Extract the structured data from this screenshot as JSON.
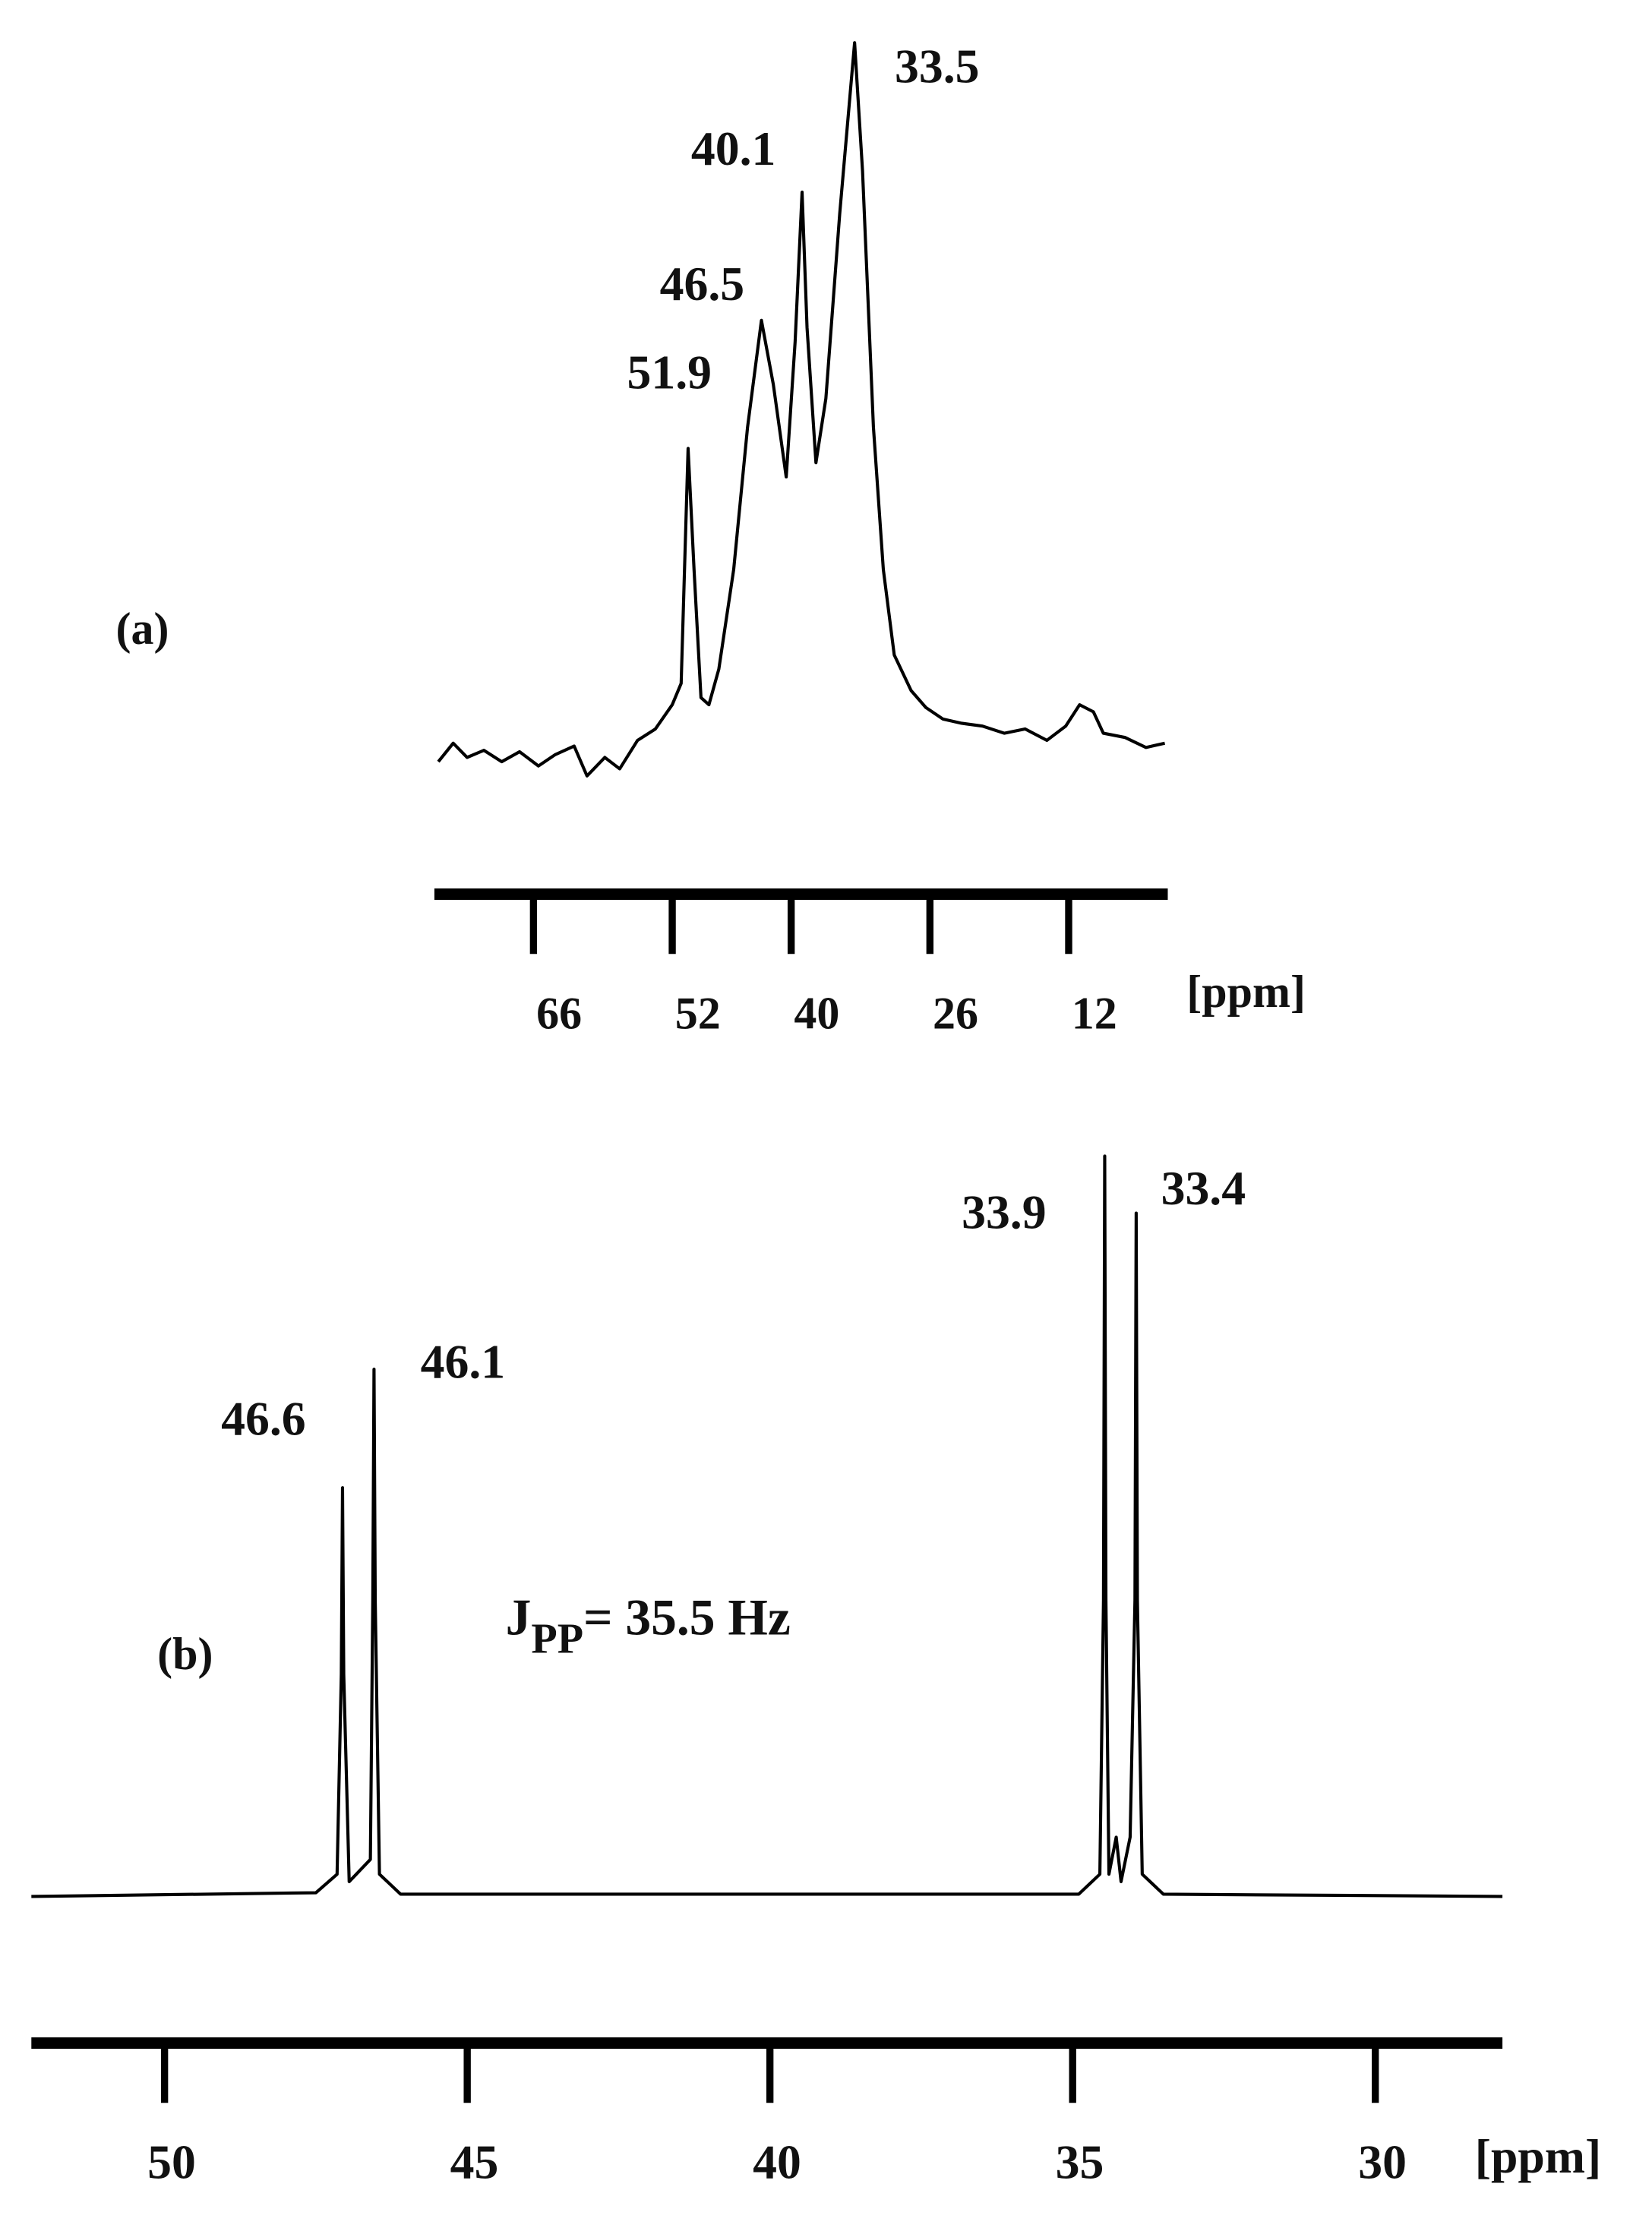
{
  "chart_data": [
    {
      "type": "line",
      "panel_label": "(a)",
      "x_label": "[ppm]",
      "color": "#000000",
      "xlim": [
        76,
        2
      ],
      "xticks": [
        66,
        52,
        40,
        26,
        12
      ],
      "ylim": [
        0,
        100
      ],
      "annotations": [
        "51.9",
        "46.5",
        "40.1",
        "33.5"
      ],
      "x": [
        75.6,
        74.1,
        72.7,
        71.0,
        69.2,
        67.4,
        65.5,
        63.8,
        61.9,
        60.6,
        58.8,
        57.3,
        55.5,
        53.7,
        52.0,
        51.1,
        50.4,
        49.8,
        49.1,
        48.3,
        47.3,
        45.8,
        44.4,
        43.0,
        41.8,
        40.5,
        39.6,
        38.9,
        38.4,
        37.5,
        36.5,
        35.1,
        33.6,
        32.8,
        31.7,
        30.7,
        29.6,
        27.9,
        26.4,
        24.7,
        22.8,
        20.7,
        18.5,
        16.4,
        14.2,
        12.3,
        10.9,
        9.5,
        8.5,
        6.3,
        4.2,
        2.3
      ],
      "values": [
        1,
        3.6,
        1.6,
        2.6,
        1,
        2.4,
        0.4,
        2,
        3.2,
        -1,
        1.6,
        0,
        4,
        5.6,
        9,
        12,
        45,
        28,
        10,
        9,
        14,
        28,
        48,
        63,
        54,
        41,
        60,
        81,
        62,
        43,
        52,
        78,
        102,
        84,
        48,
        28,
        16,
        11,
        8.6,
        7,
        6.4,
        6,
        5,
        5.6,
        4,
        6,
        9,
        8,
        5,
        4.4,
        3,
        3.6
      ]
    },
    {
      "type": "line",
      "panel_label": "(b)",
      "x_label": "[ppm]",
      "color": "#000000",
      "xlim": [
        52.2,
        27.9
      ],
      "xticks": [
        50,
        45,
        40,
        35,
        30
      ],
      "ylim": [
        0,
        100
      ],
      "annotations": [
        "46.6",
        "46.1",
        "33.9",
        "33.4"
      ],
      "coupling": {
        "symbol": "J",
        "subscript": "PP",
        "text": "= 35.5 Hz"
      },
      "x": [
        52.2,
        47.5,
        47.15,
        47.08,
        47.06,
        47.04,
        46.95,
        46.6,
        46.56,
        46.54,
        46.52,
        46.45,
        46.1,
        34.9,
        34.55,
        34.49,
        34.47,
        34.45,
        34.4,
        34.28,
        34.2,
        34.05,
        33.97,
        33.95,
        33.93,
        33.85,
        33.5,
        27.9
      ],
      "values": [
        0,
        0.5,
        3,
        30,
        55.2,
        30,
        2,
        5,
        40,
        71.2,
        40,
        3,
        0.3,
        0.3,
        3,
        40,
        100,
        40,
        3,
        8,
        2,
        8,
        40,
        92.3,
        40,
        3,
        0.3,
        0
      ]
    }
  ]
}
